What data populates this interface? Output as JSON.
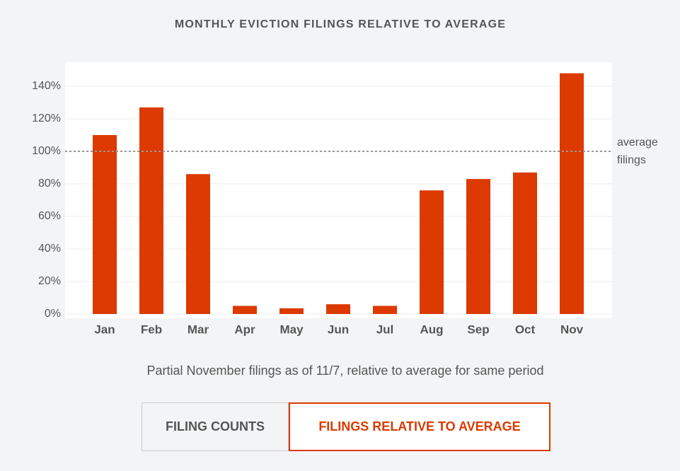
{
  "chart_data": {
    "type": "bar",
    "title": "MONTHLY EVICTION FILINGS RELATIVE TO AVERAGE",
    "categories": [
      "Jan",
      "Feb",
      "Mar",
      "Apr",
      "May",
      "Jun",
      "Jul",
      "Aug",
      "Sep",
      "Oct",
      "Nov"
    ],
    "values": [
      110,
      127,
      86,
      5,
      3.5,
      6,
      5,
      76,
      83,
      87,
      148
    ],
    "color": "#dc3a00",
    "ylim": [
      0,
      150
    ],
    "yticks": [
      {
        "value": 0,
        "label": "0%"
      },
      {
        "value": 20,
        "label": "20%"
      },
      {
        "value": 40,
        "label": "40%"
      },
      {
        "value": 60,
        "label": "60%"
      },
      {
        "value": 80,
        "label": "80%"
      },
      {
        "value": 100,
        "label": "100%"
      },
      {
        "value": 120,
        "label": "120%"
      },
      {
        "value": 140,
        "label": "140%"
      }
    ],
    "grid": true,
    "reference_line": {
      "value": 100,
      "label_lines": [
        "average",
        "filings"
      ]
    },
    "caption": "Partial November filings as of 11/7, relative to average for same period"
  },
  "buttons": [
    {
      "label": "FILING COUNTS",
      "active": false
    },
    {
      "label": "FILINGS RELATIVE TO AVERAGE",
      "active": true
    }
  ]
}
